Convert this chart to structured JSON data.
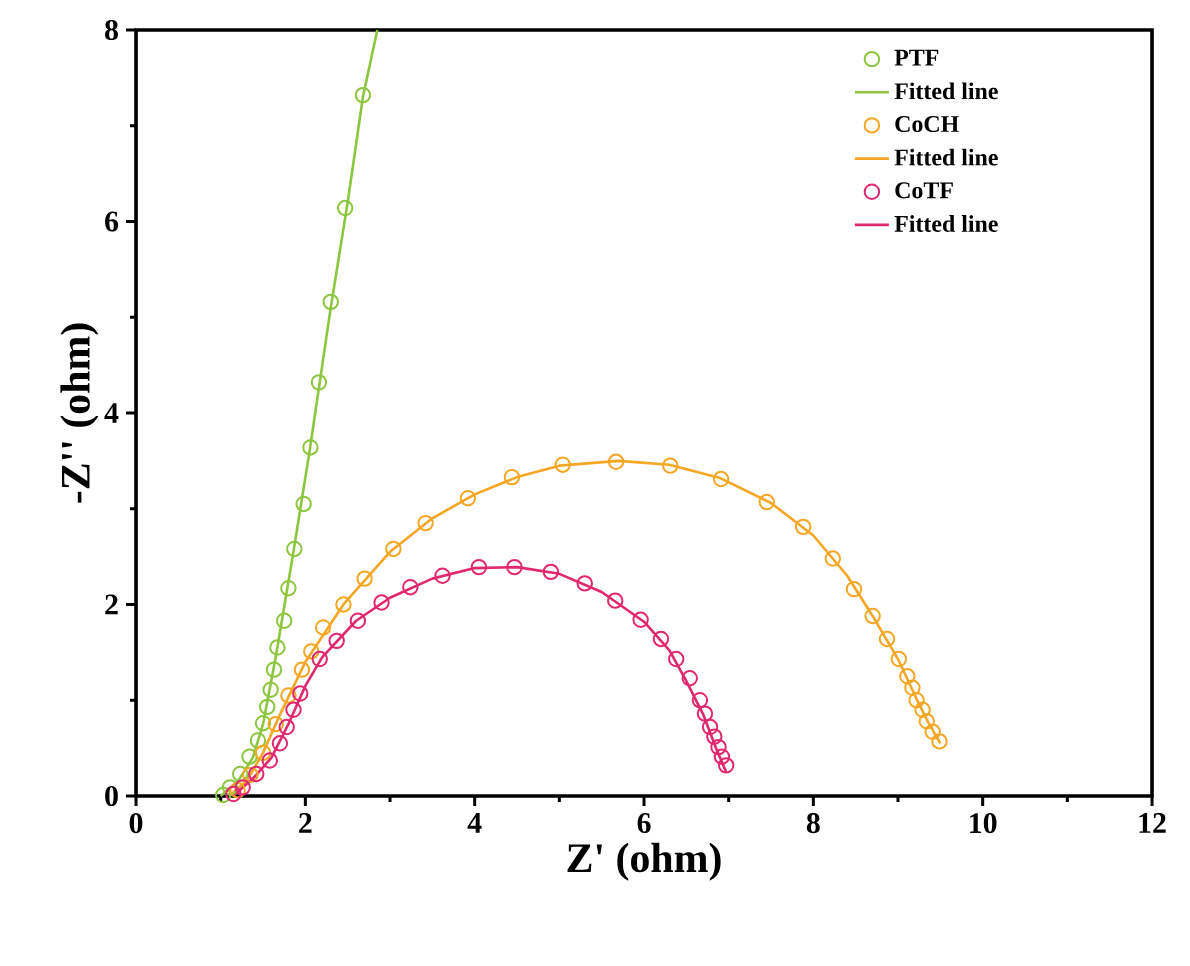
{
  "chart_data": {
    "type": "scatter",
    "xlabel": "Z' (ohm)",
    "ylabel": "-Z'' (ohm)",
    "xlim": [
      0,
      12
    ],
    "ylim": [
      0,
      8
    ],
    "xticks": [
      0,
      2,
      4,
      6,
      8,
      10,
      12
    ],
    "yticks": [
      0,
      2,
      4,
      6,
      8
    ],
    "grid": false,
    "legend": "top right",
    "series": [
      {
        "name": "PTF",
        "marker": "circle",
        "color": "#8cc63f",
        "x": [
          2.68,
          2.47,
          2.3,
          2.16,
          2.06,
          1.98,
          1.87,
          1.8,
          1.75,
          1.67,
          1.63,
          1.59,
          1.55,
          1.5,
          1.44,
          1.34,
          1.23,
          1.11,
          1.03
        ],
        "values": [
          7.32,
          6.14,
          5.16,
          4.32,
          3.64,
          3.05,
          2.58,
          2.17,
          1.83,
          1.55,
          1.32,
          1.11,
          0.93,
          0.76,
          0.58,
          0.41,
          0.23,
          0.09,
          0.01
        ]
      },
      {
        "name": "Fitted line",
        "type": "line",
        "color": "#8cc63f",
        "x": [
          1.0,
          1.2,
          1.38,
          1.5,
          1.65,
          1.85,
          2.05,
          2.3,
          2.5,
          2.68,
          2.85
        ],
        "values": [
          0,
          0.15,
          0.4,
          0.75,
          1.45,
          2.5,
          3.6,
          5.1,
          6.2,
          7.3,
          8.0
        ]
      },
      {
        "name": "CoCH",
        "marker": "circle",
        "color": "#f5a623",
        "x": [
          9.49,
          9.41,
          9.34,
          9.29,
          9.22,
          9.17,
          9.11,
          9.01,
          8.87,
          8.7,
          8.48,
          8.23,
          7.88,
          7.45,
          6.91,
          6.31,
          5.67,
          5.04,
          4.44,
          3.92,
          3.42,
          3.04,
          2.7,
          2.45,
          2.21,
          2.07,
          1.96,
          1.8,
          1.65,
          1.5,
          1.35,
          1.2
        ],
        "values": [
          0.57,
          0.67,
          0.78,
          0.9,
          1.0,
          1.13,
          1.25,
          1.43,
          1.64,
          1.88,
          2.16,
          2.48,
          2.81,
          3.07,
          3.31,
          3.45,
          3.49,
          3.46,
          3.33,
          3.11,
          2.85,
          2.58,
          2.27,
          2.0,
          1.76,
          1.51,
          1.32,
          1.05,
          0.75,
          0.45,
          0.22,
          0.06
        ]
      },
      {
        "name": "Fitted line",
        "type": "line",
        "color": "#f5a623",
        "x": [
          1.1,
          1.3,
          1.5,
          1.7,
          2.0,
          2.45,
          3.0,
          3.5,
          4.0,
          4.5,
          5.0,
          5.7,
          6.3,
          6.9,
          7.5,
          8.0,
          8.4,
          8.7,
          9.0,
          9.2,
          9.35,
          9.5
        ],
        "values": [
          0,
          0.15,
          0.45,
          0.85,
          1.4,
          2.0,
          2.55,
          2.9,
          3.15,
          3.33,
          3.45,
          3.5,
          3.46,
          3.32,
          3.06,
          2.72,
          2.3,
          1.88,
          1.43,
          1.05,
          0.78,
          0.55
        ]
      },
      {
        "name": "CoTF",
        "marker": "circle",
        "color": "#e0286e",
        "x": [
          6.97,
          6.92,
          6.88,
          6.83,
          6.78,
          6.72,
          6.66,
          6.54,
          6.38,
          6.2,
          5.96,
          5.66,
          5.3,
          4.9,
          4.47,
          4.05,
          3.62,
          3.24,
          2.9,
          2.62,
          2.37,
          2.17,
          1.94,
          1.86,
          1.78,
          1.7,
          1.58,
          1.42,
          1.26,
          1.15
        ],
        "values": [
          0.32,
          0.41,
          0.51,
          0.62,
          0.72,
          0.86,
          1.0,
          1.23,
          1.43,
          1.64,
          1.84,
          2.04,
          2.22,
          2.34,
          2.39,
          2.39,
          2.3,
          2.18,
          2.02,
          1.83,
          1.62,
          1.43,
          1.07,
          0.9,
          0.72,
          0.55,
          0.37,
          0.23,
          0.09,
          0.02
        ]
      },
      {
        "name": "Fitted line",
        "type": "line",
        "color": "#e0286e",
        "x": [
          1.15,
          1.4,
          1.6,
          1.8,
          2.0,
          2.2,
          2.6,
          3.0,
          3.5,
          4.0,
          4.5,
          5.0,
          5.5,
          6.0,
          6.3,
          6.5,
          6.7,
          6.85,
          6.97
        ],
        "values": [
          0,
          0.2,
          0.4,
          0.75,
          1.15,
          1.45,
          1.83,
          2.07,
          2.27,
          2.38,
          2.39,
          2.32,
          2.13,
          1.82,
          1.52,
          1.2,
          0.85,
          0.5,
          0.25
        ]
      }
    ]
  }
}
